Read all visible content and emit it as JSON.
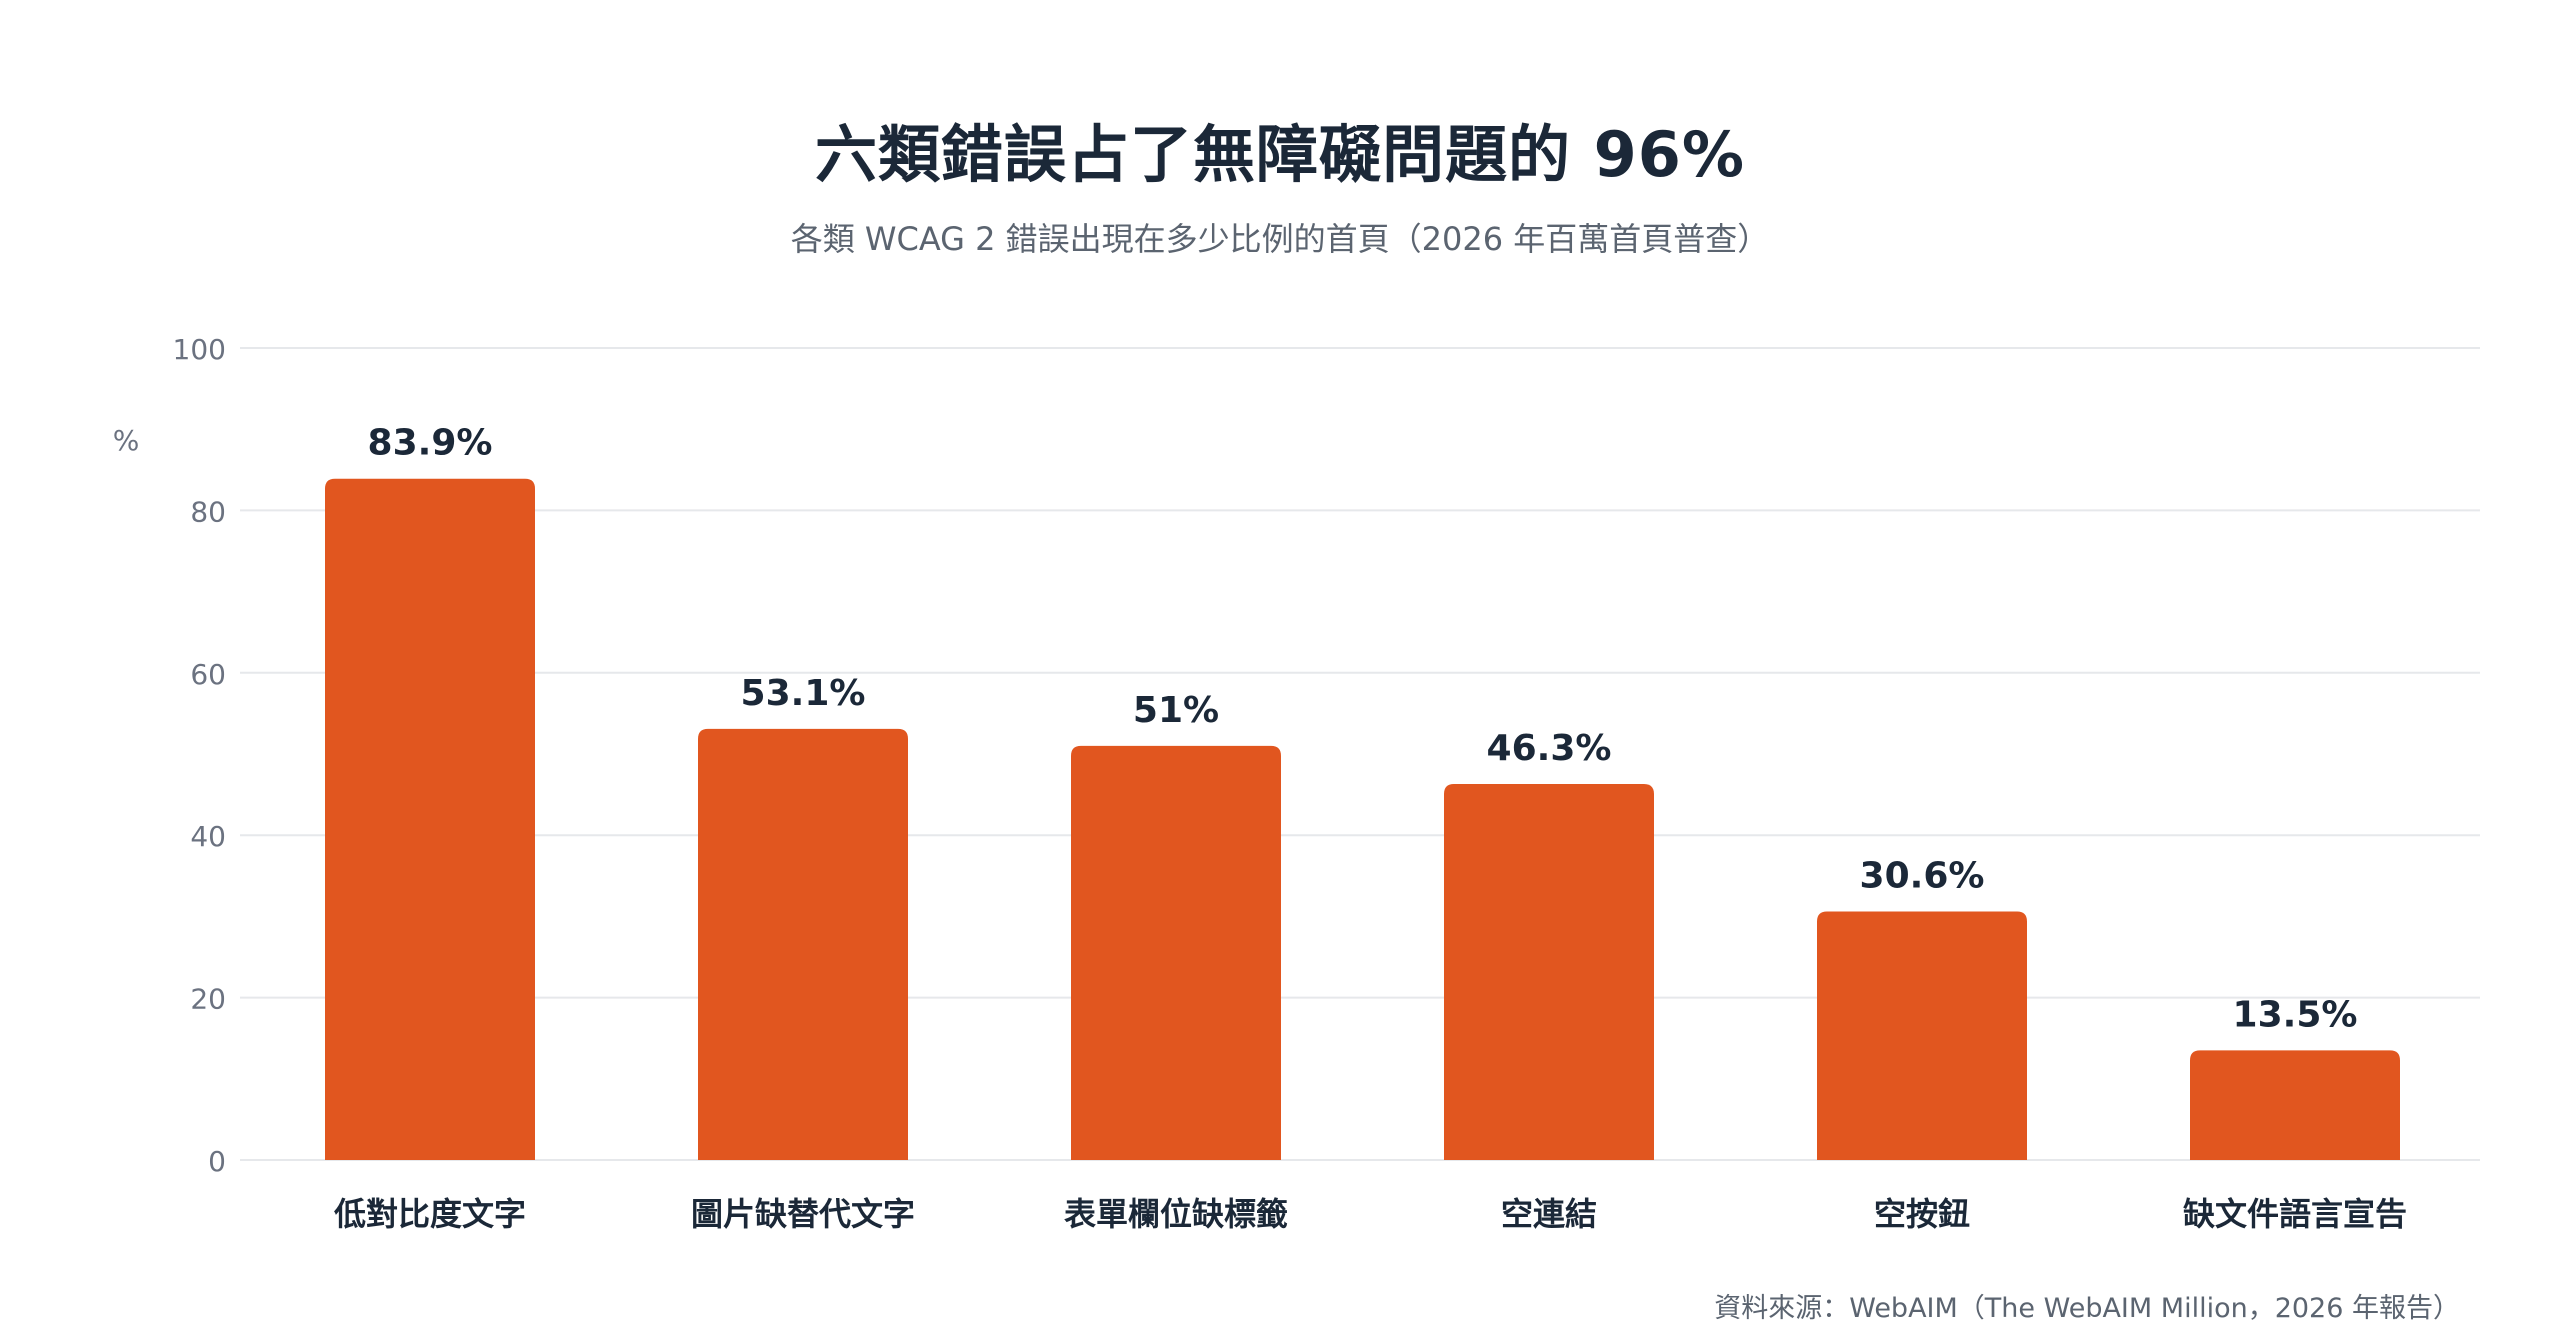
{
  "title": "六類錯誤占了無障礙問題的 96%",
  "subtitle": "各類 WCAG 2 錯誤出現在多少比例的首頁（2026 年百萬首頁普查）",
  "source": "資料來源：WebAIM（The WebAIM Million，2026 年報告）",
  "colors": {
    "bar": "#e1561f",
    "grid": "#e6e8eb",
    "value_label": "#1b2838",
    "axis_text": "#6b7280"
  },
  "chart_data": {
    "type": "bar",
    "title": "六類錯誤占了無障礙問題的 96%",
    "subtitle": "各類 WCAG 2 錯誤出現在多少比例的首頁（2026 年百萬首頁普查）",
    "xlabel": "",
    "ylabel": "%",
    "ylim": [
      0,
      100
    ],
    "yticks": [
      0,
      20,
      40,
      60,
      80,
      100
    ],
    "grid": true,
    "categories": [
      "低對比度文字",
      "圖片缺替代文字",
      "表單欄位缺標籤",
      "空連結",
      "空按鈕",
      "缺文件語言宣告"
    ],
    "values": [
      83.9,
      53.1,
      51,
      46.3,
      30.6,
      13.5
    ],
    "value_labels": [
      "83.9%",
      "53.1%",
      "51%",
      "46.3%",
      "30.6%",
      "13.5%"
    ]
  }
}
